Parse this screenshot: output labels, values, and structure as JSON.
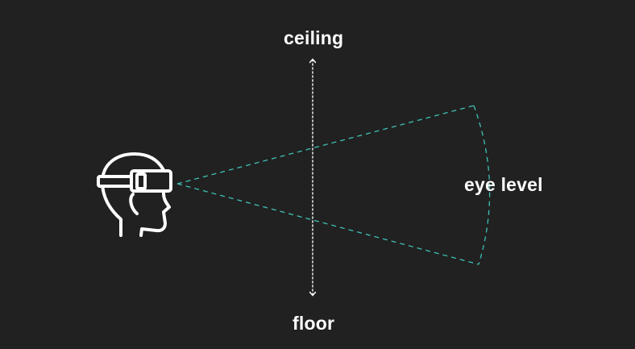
{
  "labels": {
    "top": "ceiling",
    "bottom": "floor",
    "right": "eye level"
  },
  "icons": {
    "headset_user": "vr-headset-head-icon"
  },
  "colors": {
    "background": "#212121",
    "foreground": "#ffffff",
    "view_cone": "#3fc1b5"
  }
}
